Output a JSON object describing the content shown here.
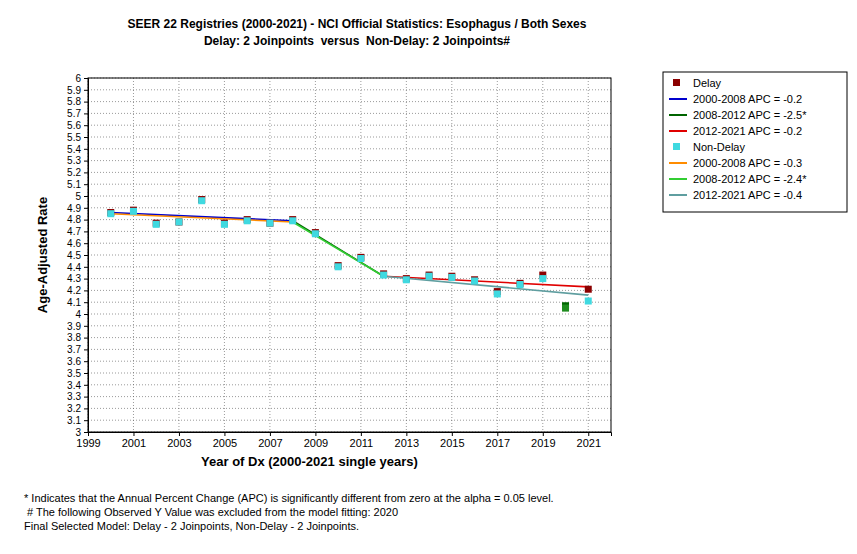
{
  "chart_data": {
    "type": "line",
    "title": "SEER 22 Registries (2000-2021) - NCI Official Statistics: Esophagus / Both Sexes",
    "subtitle": "Delay: 2 Joinpoints  versus  Non-Delay: 2 Joinpoints#",
    "x_label": "Year of Dx (2000-2021 single years)",
    "y_label": "Age-Adjusted Rate",
    "notes": [
      "* Indicates that the Annual Percent Change (APC) is significantly different from zero at the alpha = 0.05 level.",
      " # The following Observed Y Value was excluded from the model fitting: 2020",
      "Final Selected Model: Delay - 2 Joinpoints, Non-Delay - 2 Joinpoints."
    ],
    "xlim": [
      1999,
      2022
    ],
    "xticks": [
      1999,
      2001,
      2003,
      2005,
      2007,
      2009,
      2011,
      2013,
      2015,
      2017,
      2019,
      2021
    ],
    "ylim": [
      3,
      6
    ],
    "yticks": [
      3,
      3.1,
      3.2,
      3.3,
      3.4,
      3.5,
      3.6,
      3.7,
      3.8,
      3.9,
      4,
      4.1,
      4.2,
      4.3,
      4.4,
      4.5,
      4.6,
      4.7,
      4.8,
      4.9,
      5,
      5.1,
      5.2,
      5.3,
      5.4,
      5.5,
      5.6,
      5.7,
      5.8,
      5.9,
      6
    ],
    "grid": true,
    "legend": "top-right",
    "series": [
      {
        "name": "Delay",
        "type": "scatter",
        "marker": "square",
        "color": "#8B0000",
        "colors": [
          "#8B0000",
          "#8B0000",
          "#8B0000",
          "#8B0000",
          "#8B0000",
          "#8B0000",
          "#8B0000",
          "#8B0000",
          "#8B0000",
          "#8B0000",
          "#8B0000",
          "#8B0000",
          "#8B0000",
          "#8B0000",
          "#8B0000",
          "#8B0000",
          "#8B0000",
          "#8B0000",
          "#8B0000",
          "#8B0000",
          "#006400",
          "#8B0000"
        ],
        "x": [
          2000,
          2001,
          2002,
          2003,
          2004,
          2005,
          2006,
          2007,
          2008,
          2009,
          2010,
          2011,
          2012,
          2013,
          2014,
          2015,
          2016,
          2017,
          2018,
          2019,
          2020,
          2021
        ],
        "values": [
          4.86,
          4.88,
          4.77,
          4.78,
          4.97,
          4.77,
          4.8,
          4.77,
          4.8,
          4.69,
          4.41,
          4.48,
          4.34,
          4.3,
          4.33,
          4.32,
          4.29,
          4.19,
          4.26,
          4.33,
          4.07,
          4.21
        ]
      },
      {
        "name": "2000-2008 APC = -0.2",
        "type": "line",
        "line_style": "solid",
        "color": "#0000CD",
        "x": [
          2000,
          2008
        ],
        "values": [
          4.86,
          4.79
        ]
      },
      {
        "name": "2008-2012 APC = -2.5*",
        "type": "line",
        "line_style": "solid",
        "color": "#006400",
        "x": [
          2008,
          2012
        ],
        "values": [
          4.79,
          4.32
        ]
      },
      {
        "name": "2012-2021 APC = -0.2",
        "type": "line",
        "line_style": "solid",
        "color": "#E00000",
        "x": [
          2012,
          2021
        ],
        "values": [
          4.32,
          4.23
        ]
      },
      {
        "name": "Non-Delay",
        "type": "scatter",
        "marker": "square",
        "color": "#3FD9E0",
        "colors": [
          "#3FD9E0",
          "#3FD9E0",
          "#3FD9E0",
          "#3FD9E0",
          "#3FD9E0",
          "#3FD9E0",
          "#3FD9E0",
          "#3FD9E0",
          "#3FD9E0",
          "#3FD9E0",
          "#3FD9E0",
          "#3FD9E0",
          "#3FD9E0",
          "#3FD9E0",
          "#3FD9E0",
          "#3FD9E0",
          "#3FD9E0",
          "#3FD9E0",
          "#3FD9E0",
          "#3FD9E0",
          "#1E8C1E",
          "#3FD9E0"
        ],
        "x": [
          2000,
          2001,
          2002,
          2003,
          2004,
          2005,
          2006,
          2007,
          2008,
          2009,
          2010,
          2011,
          2012,
          2013,
          2014,
          2015,
          2016,
          2017,
          2018,
          2019,
          2020,
          2021
        ],
        "values": [
          4.85,
          4.87,
          4.76,
          4.78,
          4.96,
          4.76,
          4.79,
          4.77,
          4.79,
          4.68,
          4.4,
          4.47,
          4.33,
          4.29,
          4.32,
          4.31,
          4.28,
          4.17,
          4.25,
          4.3,
          4.05,
          4.11
        ]
      },
      {
        "name": "2000-2008 APC = -0.3",
        "type": "line",
        "line_style": "solid",
        "color": "#FF8C00",
        "x": [
          2000,
          2008
        ],
        "values": [
          4.85,
          4.78
        ]
      },
      {
        "name": "2008-2012 APC = -2.4*",
        "type": "line",
        "line_style": "solid",
        "color": "#32CD32",
        "x": [
          2008,
          2012
        ],
        "values": [
          4.78,
          4.32
        ]
      },
      {
        "name": "2012-2021 APC = -0.4",
        "type": "line",
        "line_style": "solid",
        "color": "#5F9EA0",
        "x": [
          2012,
          2021
        ],
        "values": [
          4.32,
          4.16
        ]
      }
    ]
  }
}
